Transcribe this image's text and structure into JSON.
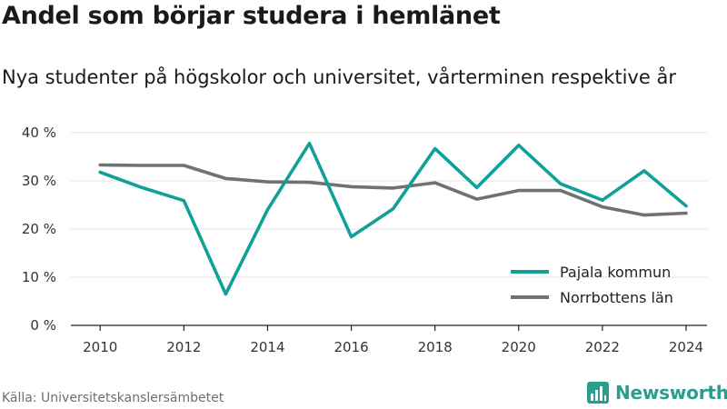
{
  "title": "Andel som börjar studera i hemlänet",
  "subtitle": "Nya studenter på högskolor och universitet, vårterminen respektive år",
  "source": "Källa: Universitetskanslersämbetet",
  "brand": {
    "name": "Newsworthy",
    "icon": "bar-chart-logo-icon",
    "color": "#2a9d8f"
  },
  "chart_data": {
    "type": "line",
    "x": [
      2010,
      2011,
      2012,
      2013,
      2014,
      2015,
      2016,
      2017,
      2018,
      2019,
      2020,
      2021,
      2022,
      2023,
      2024
    ],
    "series": [
      {
        "name": "Pajala kommun",
        "color": "#11a097",
        "values": [
          31.8,
          28.6,
          25.9,
          6.5,
          24.0,
          37.8,
          18.4,
          24.2,
          36.7,
          28.6,
          37.4,
          29.4,
          26.0,
          32.1,
          24.8
        ]
      },
      {
        "name": "Norrbottens län",
        "color": "#717074",
        "values": [
          33.3,
          33.2,
          33.2,
          30.5,
          29.8,
          29.7,
          28.8,
          28.5,
          29.6,
          26.2,
          28.0,
          28.0,
          24.6,
          22.9,
          23.3
        ]
      }
    ],
    "xticks": [
      2010,
      2012,
      2014,
      2016,
      2018,
      2020,
      2022,
      2024
    ],
    "xtick_labels": [
      "2010",
      "2012",
      "2014",
      "2016",
      "2018",
      "2020",
      "2022",
      "2024"
    ],
    "yticks": [
      0,
      10,
      20,
      30,
      40
    ],
    "ytick_labels": [
      "0 %",
      "10 %",
      "20 %",
      "30 %",
      "40 %"
    ],
    "ylim": [
      0,
      40
    ],
    "xlim": [
      2009.3,
      2024.5
    ],
    "grid": "horizontal",
    "legend_position": "bottom-right",
    "xlabel": "",
    "ylabel": ""
  }
}
